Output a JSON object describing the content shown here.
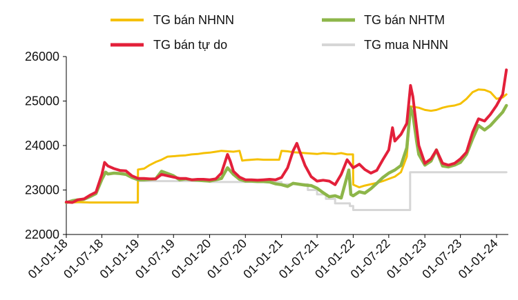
{
  "chart_data": {
    "type": "line",
    "title": "",
    "xlabel": "",
    "ylabel": "",
    "ylim": [
      22000,
      26000
    ],
    "y_ticks": [
      "22000",
      "23000",
      "24000",
      "25000",
      "26000"
    ],
    "x_ticks": [
      "01-01-18",
      "01-07-18",
      "01-01-19",
      "01-07-19",
      "01-01-20",
      "01-07-20",
      "01-01-21",
      "01-07-21",
      "01-01-22",
      "01-07-22",
      "01-01-23",
      "01-07-23",
      "01-01-24"
    ],
    "grid": false,
    "legend_position": "top",
    "series": [
      {
        "name": "TG bán NHNN",
        "color": "#f5c000",
        "points": [
          [
            "2018-01-01",
            22720
          ],
          [
            "2018-02-01",
            22720
          ],
          [
            "2018-03-01",
            22730
          ],
          [
            "2018-04-01",
            22725
          ],
          [
            "2018-05-01",
            22720
          ],
          [
            "2018-06-01",
            22720
          ],
          [
            "2018-07-01",
            22720
          ],
          [
            "2018-08-01",
            22720
          ],
          [
            "2018-09-01",
            22720
          ],
          [
            "2018-10-01",
            22720
          ],
          [
            "2018-11-01",
            22720
          ],
          [
            "2018-12-31",
            22720
          ],
          [
            "2019-01-01",
            23460
          ],
          [
            "2019-02-01",
            23480
          ],
          [
            "2019-03-01",
            23560
          ],
          [
            "2019-04-01",
            23630
          ],
          [
            "2019-05-01",
            23680
          ],
          [
            "2019-06-01",
            23750
          ],
          [
            "2019-07-01",
            23760
          ],
          [
            "2019-08-01",
            23770
          ],
          [
            "2019-09-01",
            23780
          ],
          [
            "2019-10-01",
            23800
          ],
          [
            "2019-11-01",
            23810
          ],
          [
            "2019-12-01",
            23830
          ],
          [
            "2020-01-01",
            23840
          ],
          [
            "2020-02-01",
            23860
          ],
          [
            "2020-03-01",
            23880
          ],
          [
            "2020-04-01",
            23870
          ],
          [
            "2020-05-01",
            23860
          ],
          [
            "2020-06-01",
            23880
          ],
          [
            "2020-06-15",
            23660
          ],
          [
            "2020-07-01",
            23670
          ],
          [
            "2020-08-01",
            23680
          ],
          [
            "2020-09-01",
            23690
          ],
          [
            "2020-10-01",
            23680
          ],
          [
            "2020-11-01",
            23680
          ],
          [
            "2020-12-20",
            23680
          ],
          [
            "2021-01-01",
            23880
          ],
          [
            "2021-02-01",
            23870
          ],
          [
            "2021-03-01",
            23850
          ],
          [
            "2021-04-01",
            23840
          ],
          [
            "2021-05-01",
            23830
          ],
          [
            "2021-06-01",
            23820
          ],
          [
            "2021-07-01",
            23810
          ],
          [
            "2021-08-01",
            23830
          ],
          [
            "2021-09-01",
            23820
          ],
          [
            "2021-10-01",
            23810
          ],
          [
            "2021-11-01",
            23830
          ],
          [
            "2021-12-01",
            23800
          ],
          [
            "2021-12-31",
            23800
          ],
          [
            "2022-01-01",
            23120
          ],
          [
            "2022-02-01",
            23060
          ],
          [
            "2022-03-01",
            23100
          ],
          [
            "2022-04-01",
            23130
          ],
          [
            "2022-05-01",
            23160
          ],
          [
            "2022-06-01",
            23200
          ],
          [
            "2022-07-01",
            23250
          ],
          [
            "2022-08-01",
            23300
          ],
          [
            "2022-09-01",
            23400
          ],
          [
            "2022-10-01",
            23750
          ],
          [
            "2022-10-20",
            24880
          ],
          [
            "2022-11-01",
            24870
          ],
          [
            "2022-12-01",
            24850
          ],
          [
            "2023-01-01",
            24800
          ],
          [
            "2023-02-01",
            24780
          ],
          [
            "2023-03-01",
            24800
          ],
          [
            "2023-04-01",
            24850
          ],
          [
            "2023-05-01",
            24880
          ],
          [
            "2023-06-01",
            24900
          ],
          [
            "2023-07-01",
            24940
          ],
          [
            "2023-08-01",
            25050
          ],
          [
            "2023-09-01",
            25200
          ],
          [
            "2023-10-01",
            25260
          ],
          [
            "2023-11-01",
            25250
          ],
          [
            "2023-12-01",
            25200
          ],
          [
            "2024-01-01",
            25050
          ],
          [
            "2024-02-01",
            25080
          ],
          [
            "2024-02-20",
            25150
          ]
        ]
      },
      {
        "name": "TG bán NHTM",
        "color": "#8db64a",
        "points": [
          [
            "2018-01-01",
            22720
          ],
          [
            "2018-02-01",
            22760
          ],
          [
            "2018-03-01",
            22780
          ],
          [
            "2018-04-01",
            22790
          ],
          [
            "2018-05-01",
            22850
          ],
          [
            "2018-06-01",
            22920
          ],
          [
            "2018-07-01",
            23240
          ],
          [
            "2018-07-20",
            23400
          ],
          [
            "2018-08-01",
            23360
          ],
          [
            "2018-09-01",
            23380
          ],
          [
            "2018-10-01",
            23370
          ],
          [
            "2018-11-01",
            23350
          ],
          [
            "2018-12-01",
            23280
          ],
          [
            "2019-01-01",
            23230
          ],
          [
            "2019-02-01",
            23230
          ],
          [
            "2019-03-01",
            23240
          ],
          [
            "2019-04-01",
            23250
          ],
          [
            "2019-05-01",
            23420
          ],
          [
            "2019-06-01",
            23370
          ],
          [
            "2019-07-01",
            23320
          ],
          [
            "2019-08-01",
            23230
          ],
          [
            "2019-09-01",
            23250
          ],
          [
            "2019-10-01",
            23230
          ],
          [
            "2019-11-01",
            23220
          ],
          [
            "2019-12-01",
            23210
          ],
          [
            "2020-01-01",
            23200
          ],
          [
            "2020-02-01",
            23230
          ],
          [
            "2020-03-01",
            23260
          ],
          [
            "2020-04-01",
            23500
          ],
          [
            "2020-05-01",
            23350
          ],
          [
            "2020-06-01",
            23240
          ],
          [
            "2020-07-01",
            23200
          ],
          [
            "2020-08-01",
            23200
          ],
          [
            "2020-09-01",
            23190
          ],
          [
            "2020-10-01",
            23190
          ],
          [
            "2020-11-01",
            23180
          ],
          [
            "2020-12-01",
            23140
          ],
          [
            "2021-01-01",
            23120
          ],
          [
            "2021-02-01",
            23080
          ],
          [
            "2021-03-01",
            23150
          ],
          [
            "2021-04-01",
            23130
          ],
          [
            "2021-05-01",
            23110
          ],
          [
            "2021-06-01",
            23100
          ],
          [
            "2021-07-01",
            23040
          ],
          [
            "2021-08-01",
            22940
          ],
          [
            "2021-09-01",
            22850
          ],
          [
            "2021-10-01",
            22870
          ],
          [
            "2021-11-01",
            22820
          ],
          [
            "2021-12-10",
            23450
          ],
          [
            "2021-12-20",
            22900
          ],
          [
            "2022-01-01",
            22870
          ],
          [
            "2022-02-01",
            22960
          ],
          [
            "2022-03-01",
            22930
          ],
          [
            "2022-04-01",
            23030
          ],
          [
            "2022-05-01",
            23150
          ],
          [
            "2022-06-01",
            23280
          ],
          [
            "2022-07-01",
            23380
          ],
          [
            "2022-08-01",
            23450
          ],
          [
            "2022-09-01",
            23550
          ],
          [
            "2022-10-01",
            23950
          ],
          [
            "2022-10-20",
            24850
          ],
          [
            "2022-11-01",
            24700
          ],
          [
            "2022-11-20",
            24100
          ],
          [
            "2022-12-01",
            23800
          ],
          [
            "2023-01-01",
            23560
          ],
          [
            "2023-02-01",
            23650
          ],
          [
            "2023-03-01",
            23900
          ],
          [
            "2023-04-01",
            23540
          ],
          [
            "2023-05-01",
            23520
          ],
          [
            "2023-06-01",
            23560
          ],
          [
            "2023-07-01",
            23620
          ],
          [
            "2023-08-01",
            23800
          ],
          [
            "2023-09-01",
            24150
          ],
          [
            "2023-10-01",
            24450
          ],
          [
            "2023-11-01",
            24350
          ],
          [
            "2023-12-01",
            24450
          ],
          [
            "2024-01-01",
            24600
          ],
          [
            "2024-02-01",
            24750
          ],
          [
            "2024-02-20",
            24900
          ]
        ]
      },
      {
        "name": "TG bán tự do",
        "color": "#e3203a",
        "points": [
          [
            "2018-01-01",
            22730
          ],
          [
            "2018-02-01",
            22720
          ],
          [
            "2018-03-01",
            22780
          ],
          [
            "2018-04-01",
            22800
          ],
          [
            "2018-05-01",
            22880
          ],
          [
            "2018-06-01",
            22950
          ],
          [
            "2018-07-01",
            23350
          ],
          [
            "2018-07-15",
            23620
          ],
          [
            "2018-08-01",
            23540
          ],
          [
            "2018-09-01",
            23480
          ],
          [
            "2018-10-01",
            23440
          ],
          [
            "2018-11-01",
            23430
          ],
          [
            "2018-12-01",
            23320
          ],
          [
            "2019-01-01",
            23260
          ],
          [
            "2019-02-01",
            23260
          ],
          [
            "2019-03-01",
            23250
          ],
          [
            "2019-04-01",
            23250
          ],
          [
            "2019-05-01",
            23350
          ],
          [
            "2019-06-01",
            23320
          ],
          [
            "2019-07-01",
            23290
          ],
          [
            "2019-08-01",
            23260
          ],
          [
            "2019-09-01",
            23260
          ],
          [
            "2019-10-01",
            23230
          ],
          [
            "2019-11-01",
            23240
          ],
          [
            "2019-12-01",
            23240
          ],
          [
            "2020-01-01",
            23230
          ],
          [
            "2020-02-01",
            23250
          ],
          [
            "2020-03-01",
            23380
          ],
          [
            "2020-04-01",
            23800
          ],
          [
            "2020-04-15",
            23650
          ],
          [
            "2020-05-01",
            23420
          ],
          [
            "2020-06-01",
            23290
          ],
          [
            "2020-07-01",
            23230
          ],
          [
            "2020-08-01",
            23230
          ],
          [
            "2020-09-01",
            23220
          ],
          [
            "2020-10-01",
            23230
          ],
          [
            "2020-11-01",
            23240
          ],
          [
            "2020-12-01",
            23230
          ],
          [
            "2021-01-01",
            23280
          ],
          [
            "2021-02-01",
            23500
          ],
          [
            "2021-03-01",
            23880
          ],
          [
            "2021-03-20",
            24050
          ],
          [
            "2021-04-01",
            23900
          ],
          [
            "2021-05-01",
            23550
          ],
          [
            "2021-06-01",
            23300
          ],
          [
            "2021-07-01",
            23200
          ],
          [
            "2021-08-01",
            23220
          ],
          [
            "2021-09-01",
            23200
          ],
          [
            "2021-10-01",
            23120
          ],
          [
            "2021-11-01",
            23350
          ],
          [
            "2021-12-01",
            23680
          ],
          [
            "2022-01-01",
            23500
          ],
          [
            "2022-02-01",
            23580
          ],
          [
            "2022-03-01",
            23460
          ],
          [
            "2022-04-01",
            23380
          ],
          [
            "2022-05-01",
            23440
          ],
          [
            "2022-06-01",
            23680
          ],
          [
            "2022-07-01",
            23900
          ],
          [
            "2022-07-20",
            24400
          ],
          [
            "2022-08-01",
            24100
          ],
          [
            "2022-09-01",
            24250
          ],
          [
            "2022-10-01",
            24500
          ],
          [
            "2022-10-20",
            25350
          ],
          [
            "2022-11-01",
            25100
          ],
          [
            "2022-11-20",
            24400
          ],
          [
            "2022-12-01",
            24000
          ],
          [
            "2023-01-01",
            23600
          ],
          [
            "2023-02-01",
            23700
          ],
          [
            "2023-03-01",
            23900
          ],
          [
            "2023-04-01",
            23600
          ],
          [
            "2023-05-01",
            23560
          ],
          [
            "2023-06-01",
            23600
          ],
          [
            "2023-07-01",
            23700
          ],
          [
            "2023-08-01",
            23850
          ],
          [
            "2023-09-01",
            24300
          ],
          [
            "2023-10-01",
            24600
          ],
          [
            "2023-11-01",
            24550
          ],
          [
            "2023-12-01",
            24700
          ],
          [
            "2024-01-01",
            24900
          ],
          [
            "2024-02-01",
            25150
          ],
          [
            "2024-02-20",
            25700
          ]
        ]
      },
      {
        "name": "TG mua NHNN",
        "color": "#d6d6d6",
        "points": [
          [
            "2018-01-01",
            22720
          ],
          [
            "2018-05-01",
            22720
          ],
          [
            "2018-12-31",
            22720
          ],
          [
            "2019-01-01",
            23200
          ],
          [
            "2019-06-01",
            23200
          ],
          [
            "2019-12-31",
            23200
          ],
          [
            "2020-01-01",
            23180
          ],
          [
            "2020-06-01",
            23180
          ],
          [
            "2020-12-31",
            23180
          ],
          [
            "2021-01-01",
            23130
          ],
          [
            "2021-05-01",
            23130
          ],
          [
            "2021-05-15",
            23000
          ],
          [
            "2021-07-01",
            22900
          ],
          [
            "2021-08-15",
            22800
          ],
          [
            "2021-10-01",
            22700
          ],
          [
            "2021-12-15",
            22640
          ],
          [
            "2022-01-01",
            22550
          ],
          [
            "2022-06-01",
            22550
          ],
          [
            "2022-10-17",
            22550
          ],
          [
            "2022-10-18",
            23400
          ],
          [
            "2023-06-01",
            23400
          ],
          [
            "2024-02-20",
            23400
          ]
        ]
      }
    ]
  }
}
